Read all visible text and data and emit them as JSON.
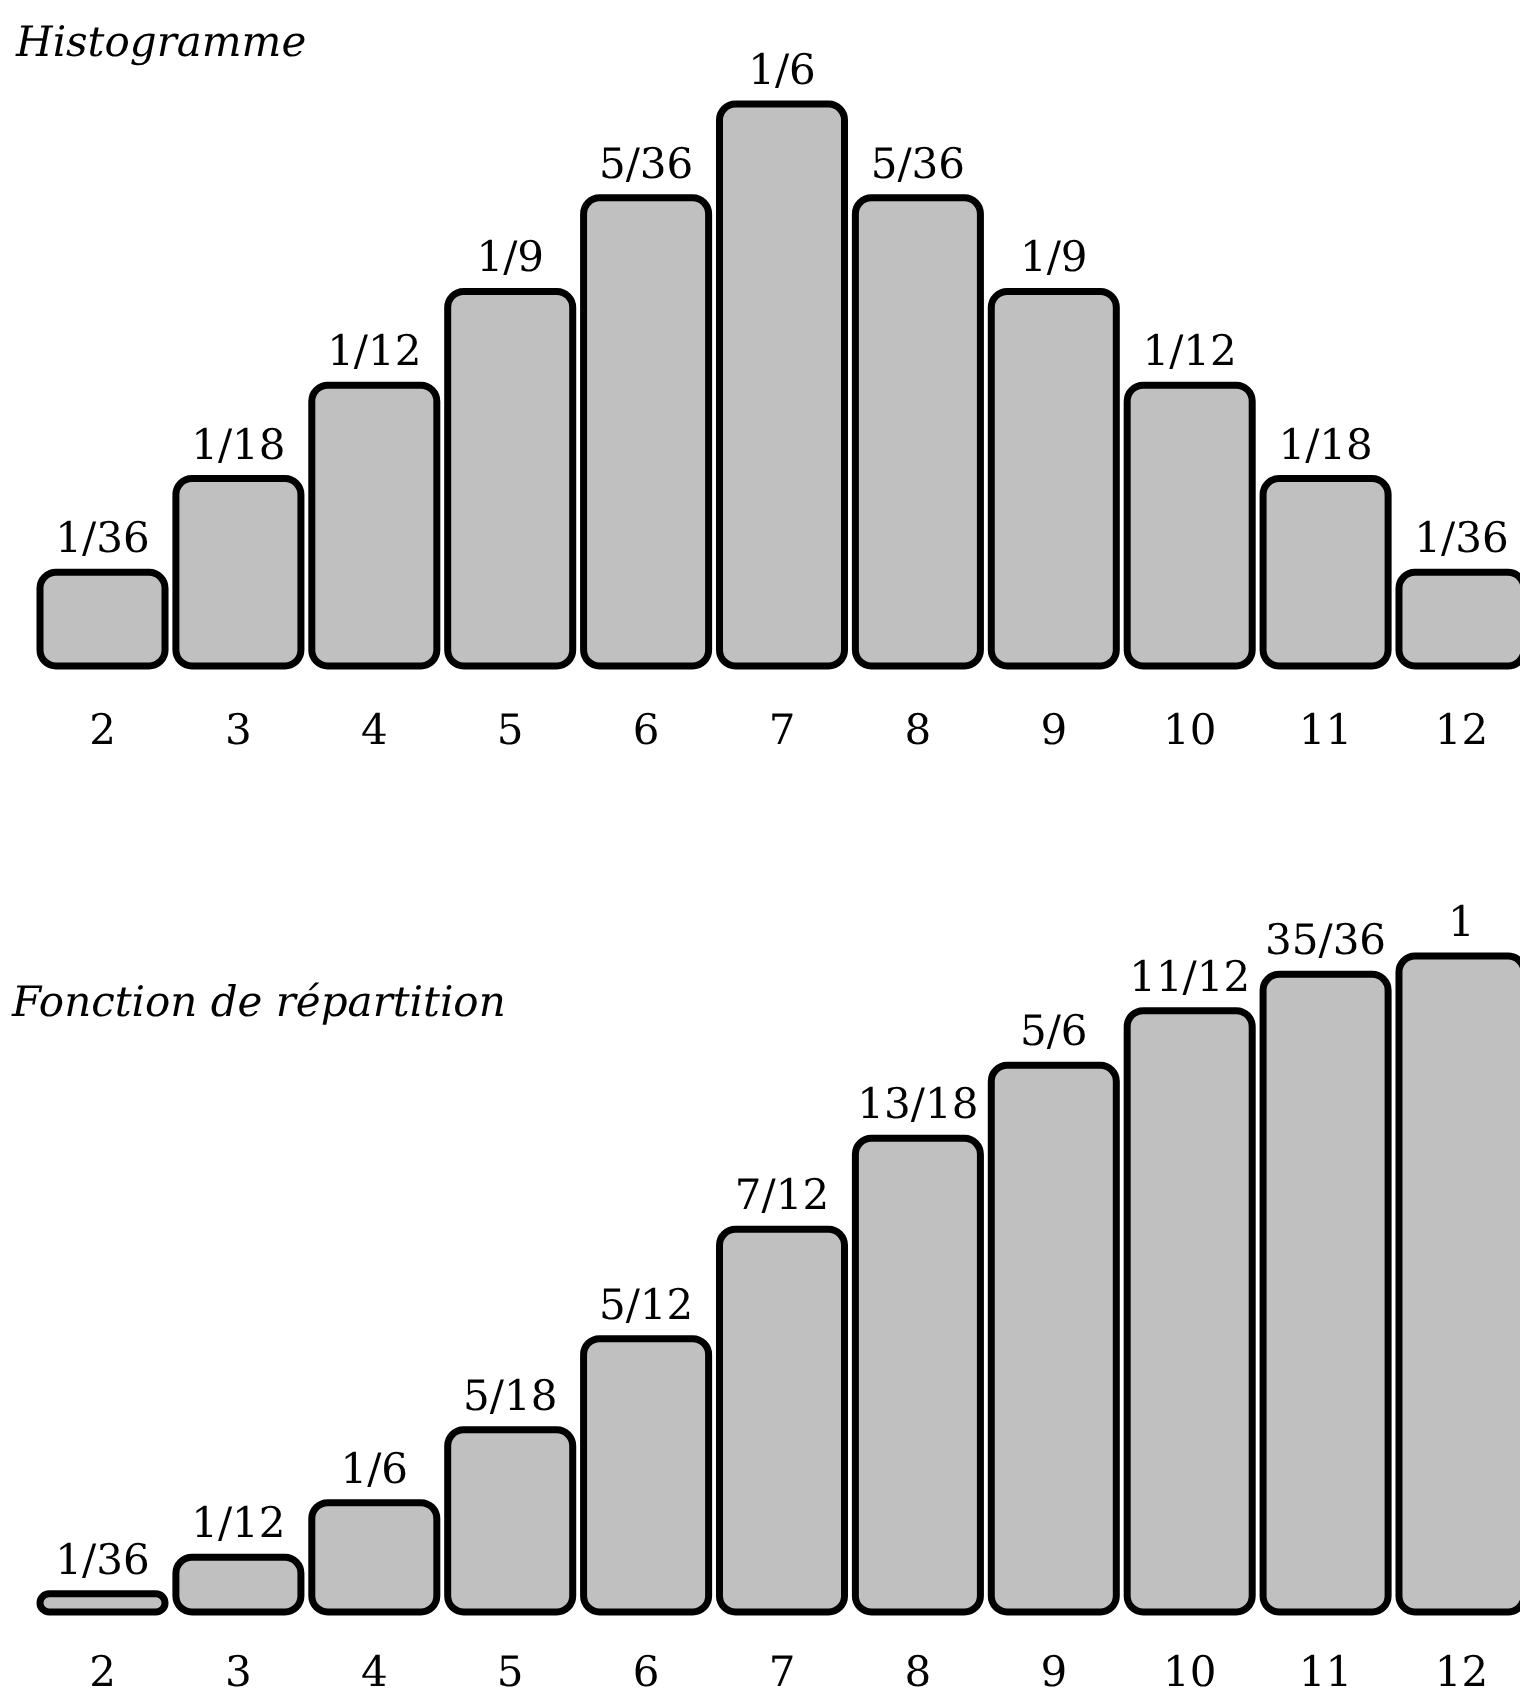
{
  "chart_data": [
    {
      "type": "bar",
      "title": "Histogramme",
      "categories": [
        "2",
        "3",
        "4",
        "5",
        "6",
        "7",
        "8",
        "9",
        "10",
        "11",
        "12"
      ],
      "values": [
        0.0278,
        0.0556,
        0.0833,
        0.1111,
        0.1389,
        0.1667,
        0.1389,
        0.1111,
        0.0833,
        0.0556,
        0.0278
      ],
      "value_labels": [
        "1/36",
        "1/18",
        "1/12",
        "1/9",
        "5/36",
        "1/6",
        "5/36",
        "1/9",
        "1/12",
        "1/18",
        "1/36"
      ],
      "color": "#c0c0c0",
      "ylim": [
        0,
        0.1667
      ],
      "tick_labels": "x"
    },
    {
      "type": "bar",
      "title": "Fonction de répartition",
      "categories": [
        "2",
        "3",
        "4",
        "5",
        "6",
        "7",
        "8",
        "9",
        "10",
        "11",
        "12"
      ],
      "values": [
        0.0278,
        0.0833,
        0.1667,
        0.2778,
        0.4167,
        0.5833,
        0.7222,
        0.8333,
        0.9167,
        0.9722,
        1
      ],
      "value_labels": [
        "1/36",
        "1/12",
        "1/6",
        "5/18",
        "5/12",
        "7/12",
        "13/18",
        "5/6",
        "11/12",
        "35/36",
        "1"
      ],
      "color": "#c0c0c0",
      "ylim": [
        0,
        1
      ],
      "tick_labels": "x"
    }
  ]
}
